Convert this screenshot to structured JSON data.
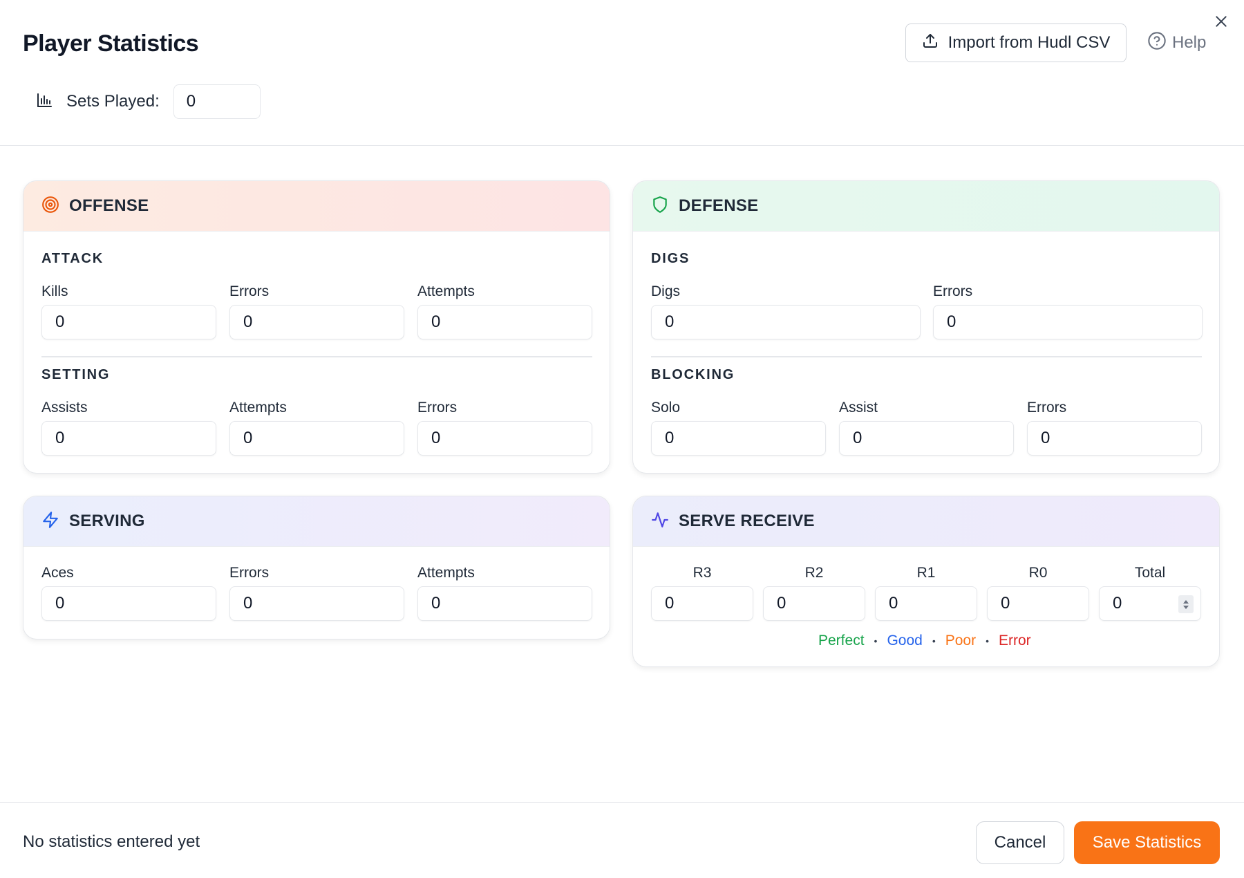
{
  "header": {
    "title": "Player Statistics",
    "import_label": "Import from Hudl CSV",
    "help_label": "Help",
    "sets_played_label": "Sets Played:",
    "sets_played_value": "0"
  },
  "offense": {
    "title": "OFFENSE",
    "attack": {
      "title": "ATTACK",
      "fields": [
        {
          "label": "Kills",
          "value": "0"
        },
        {
          "label": "Errors",
          "value": "0"
        },
        {
          "label": "Attempts",
          "value": "0"
        }
      ]
    },
    "setting": {
      "title": "SETTING",
      "fields": [
        {
          "label": "Assists",
          "value": "0"
        },
        {
          "label": "Attempts",
          "value": "0"
        },
        {
          "label": "Errors",
          "value": "0"
        }
      ]
    }
  },
  "defense": {
    "title": "DEFENSE",
    "digs": {
      "title": "DIGS",
      "fields": [
        {
          "label": "Digs",
          "value": "0"
        },
        {
          "label": "Errors",
          "value": "0"
        }
      ]
    },
    "blocking": {
      "title": "BLOCKING",
      "fields": [
        {
          "label": "Solo",
          "value": "0"
        },
        {
          "label": "Assist",
          "value": "0"
        },
        {
          "label": "Errors",
          "value": "0"
        }
      ]
    }
  },
  "serving": {
    "title": "SERVING",
    "fields": [
      {
        "label": "Aces",
        "value": "0"
      },
      {
        "label": "Errors",
        "value": "0"
      },
      {
        "label": "Attempts",
        "value": "0"
      }
    ]
  },
  "serve_receive": {
    "title": "SERVE RECEIVE",
    "fields": [
      {
        "label": "R3",
        "value": "0"
      },
      {
        "label": "R2",
        "value": "0"
      },
      {
        "label": "R1",
        "value": "0"
      },
      {
        "label": "R0",
        "value": "0"
      },
      {
        "label": "Total",
        "value": "0"
      }
    ],
    "legend": {
      "perfect": "Perfect",
      "good": "Good",
      "poor": "Poor",
      "error": "Error",
      "separator": "•"
    }
  },
  "footer": {
    "status": "No statistics entered yet",
    "cancel_label": "Cancel",
    "save_label": "Save Statistics"
  },
  "colors": {
    "accent": "#f97316",
    "offense_icon": "#ea580c",
    "defense_icon": "#16a34a",
    "serving_icon": "#2563eb",
    "receive_icon": "#4f46e5",
    "perfect": "#16a34a",
    "good": "#2563eb",
    "poor": "#f97316",
    "error": "#dc2626"
  },
  "icons": {
    "upload": "upload-icon",
    "help": "help-circle-icon",
    "close": "close-icon",
    "bar_chart": "bar-chart-icon",
    "offense": "target-icon",
    "defense": "shield-icon",
    "serving": "zap-icon",
    "receive": "activity-icon"
  }
}
